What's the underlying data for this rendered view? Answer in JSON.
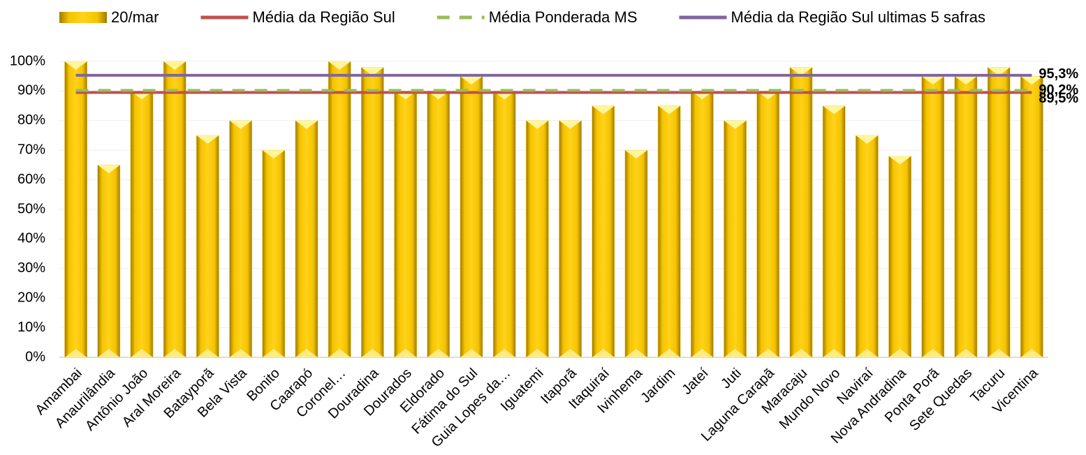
{
  "chart_data": {
    "type": "bar",
    "categories": [
      "Amambai",
      "Anaurilândia",
      "Antônio João",
      "Aral Moreira",
      "Batayporã",
      "Bela Vista",
      "Bonito",
      "Caarapó",
      "Coronel…",
      "Douradina",
      "Dourados",
      "Eldorado",
      "Fátima do Sul",
      "Guia Lopes da…",
      "Iguatemi",
      "Itaporã",
      "Itaquiraí",
      "Ivinhema",
      "Jardim",
      "Jateí",
      "Juti",
      "Laguna Carapã",
      "Maracaju",
      "Mundo Novo",
      "Naviraí",
      "Nova Andradina",
      "Ponta Porã",
      "Sete Quedas",
      "Tacuru",
      "Vicentina"
    ],
    "series": [
      {
        "name": "20/mar",
        "color": "#f2c40f",
        "values": [
          100,
          65,
          90,
          100,
          75,
          80,
          70,
          80,
          100,
          98,
          90,
          90,
          95,
          90,
          80,
          80,
          85,
          70,
          85,
          90,
          80,
          90,
          98,
          85,
          75,
          68,
          95,
          95,
          98,
          95
        ]
      }
    ],
    "lines": [
      {
        "name": "Média da Região Sul",
        "color": "#c0504d",
        "value": 89.5,
        "value_label": "89,5%",
        "dashed": false
      },
      {
        "name": "Média Ponderada MS",
        "color": "#9bbb59",
        "value": 90.2,
        "value_label": "90,2%",
        "dashed": true
      },
      {
        "name": "Média da Região Sul ultimas 5 safras",
        "color": "#8064a2",
        "value": 95.3,
        "value_label": "95,3%",
        "dashed": false
      }
    ],
    "ylim": [
      0,
      100
    ],
    "yticks": [
      {
        "value": 0,
        "label": "0%"
      },
      {
        "value": 10,
        "label": "10%"
      },
      {
        "value": 20,
        "label": "20%"
      },
      {
        "value": 30,
        "label": "30%"
      },
      {
        "value": 40,
        "label": "40%"
      },
      {
        "value": 50,
        "label": "50%"
      },
      {
        "value": 60,
        "label": "60%"
      },
      {
        "value": 70,
        "label": "70%"
      },
      {
        "value": 80,
        "label": "80%"
      },
      {
        "value": 90,
        "label": "90%"
      },
      {
        "value": 100,
        "label": "100%"
      }
    ],
    "grid": true
  }
}
